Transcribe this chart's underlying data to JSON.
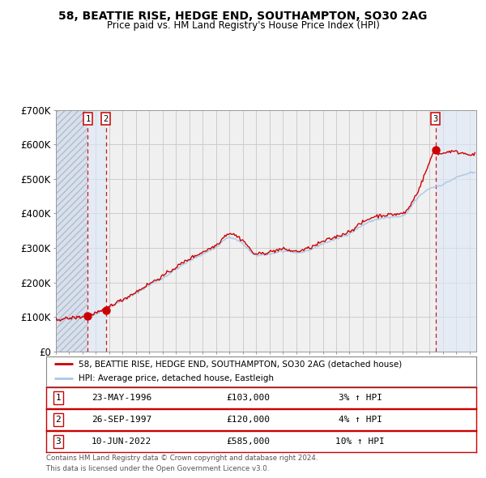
{
  "title": "58, BEATTIE RISE, HEDGE END, SOUTHAMPTON, SO30 2AG",
  "subtitle": "Price paid vs. HM Land Registry's House Price Index (HPI)",
  "xlim": [
    1994.0,
    2025.5
  ],
  "ylim": [
    0,
    700000
  ],
  "yticks": [
    0,
    100000,
    200000,
    300000,
    400000,
    500000,
    600000,
    700000
  ],
  "ytick_labels": [
    "£0",
    "£100K",
    "£200K",
    "£300K",
    "£400K",
    "£500K",
    "£600K",
    "£700K"
  ],
  "hpi_color": "#a8c8e8",
  "price_color": "#cc0000",
  "grid_color": "#cccccc",
  "bg_color": "#ffffff",
  "plot_bg_color": "#f0f0f0",
  "sale_dates_decimal": [
    1996.39,
    1997.74,
    2022.44
  ],
  "sale_prices": [
    103000,
    120000,
    585000
  ],
  "sale_labels": [
    "1",
    "2",
    "3"
  ],
  "legend_price_label": "58, BEATTIE RISE, HEDGE END, SOUTHAMPTON, SO30 2AG (detached house)",
  "legend_hpi_label": "HPI: Average price, detached house, Eastleigh",
  "table_rows": [
    [
      "1",
      "23-MAY-1996",
      "£103,000",
      "3% ↑ HPI"
    ],
    [
      "2",
      "26-SEP-1997",
      "£120,000",
      "4% ↑ HPI"
    ],
    [
      "3",
      "10-JUN-2022",
      "£585,000",
      "10% ↑ HPI"
    ]
  ],
  "footer_line1": "Contains HM Land Registry data © Crown copyright and database right 2024.",
  "footer_line2": "This data is licensed under the Open Government Licence v3.0.",
  "hatch_region_start": 1994.0,
  "hatch_region_end": 1996.39,
  "hpi_anchors_x": [
    1994,
    1995,
    1996,
    1997,
    1998,
    1999,
    2000,
    2001,
    2002,
    2003,
    2004,
    2005,
    2006,
    2007,
    2008,
    2009,
    2010,
    2011,
    2012,
    2013,
    2014,
    2015,
    2016,
    2017,
    2018,
    2019,
    2020,
    2021,
    2022,
    2023,
    2024,
    2025
  ],
  "hpi_anchors_y": [
    92000,
    96000,
    100000,
    110000,
    128000,
    148000,
    168000,
    192000,
    212000,
    238000,
    262000,
    282000,
    302000,
    330000,
    312000,
    278000,
    282000,
    290000,
    286000,
    294000,
    312000,
    326000,
    342000,
    366000,
    382000,
    388000,
    392000,
    440000,
    472000,
    484000,
    504000,
    516000
  ],
  "price_anchors_x": [
    1994,
    1995,
    1996.39,
    1997,
    1997.74,
    1998,
    1999,
    2000,
    2001,
    2002,
    2003,
    2004,
    2005,
    2006,
    2007,
    2008,
    2009,
    2010,
    2011,
    2012,
    2013,
    2014,
    2015,
    2016,
    2017,
    2018,
    2019,
    2020,
    2021,
    2022.0,
    2022.44,
    2022.7,
    2023,
    2023.5,
    2024,
    2024.5,
    2025
  ],
  "price_anchors_y": [
    92000,
    96000,
    103000,
    112000,
    120000,
    130000,
    150000,
    172000,
    196000,
    218000,
    244000,
    268000,
    288000,
    308000,
    342000,
    322000,
    282000,
    288000,
    296000,
    290000,
    300000,
    318000,
    332000,
    348000,
    374000,
    392000,
    396000,
    400000,
    455000,
    548000,
    585000,
    572000,
    574000,
    580000,
    578000,
    575000,
    572000
  ]
}
